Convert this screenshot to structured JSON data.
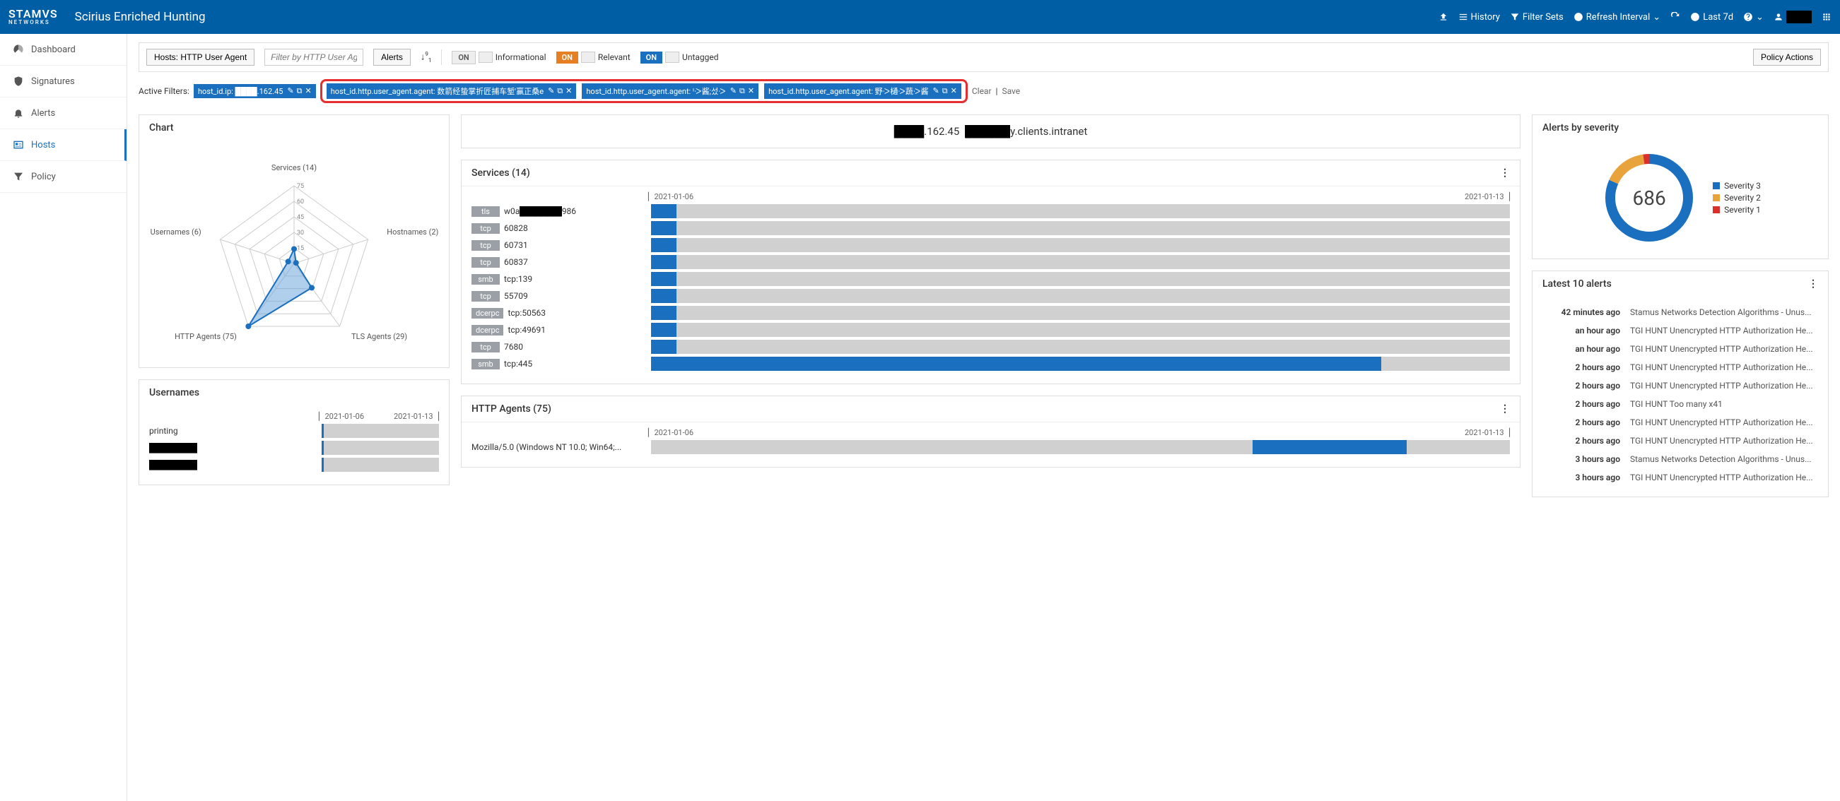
{
  "header": {
    "brand": "STAMVS",
    "brand_sub": "NETWORKS",
    "app_title": "Scirius Enriched Hunting",
    "links": {
      "history": "History",
      "filter_sets": "Filter Sets",
      "refresh": "Refresh Interval",
      "time_range": "Last 7d"
    }
  },
  "sidebar": {
    "items": [
      {
        "label": "Dashboard",
        "icon": "dashboard"
      },
      {
        "label": "Signatures",
        "icon": "shield"
      },
      {
        "label": "Alerts",
        "icon": "bell"
      },
      {
        "label": "Hosts",
        "icon": "id-card",
        "active": true
      },
      {
        "label": "Policy",
        "icon": "filter"
      }
    ]
  },
  "toolbar": {
    "hosts_button": "Hosts: HTTP User Agent",
    "filter_placeholder": "Filter by HTTP User Agent",
    "alerts_button": "Alerts",
    "toggles": {
      "informational": {
        "state": "ON",
        "label": "Informational",
        "on_label": "ON"
      },
      "relevant": {
        "state": "ON",
        "label": "Relevant",
        "on_label": "ON"
      },
      "untagged": {
        "state": "ON",
        "label": "Untagged",
        "on_label": "ON"
      }
    },
    "policy_actions": "Policy Actions"
  },
  "filters": {
    "label": "Active Filters:",
    "chips": [
      {
        "text": "host_id.ip: ████.162.45"
      },
      {
        "text": "host_id.http.user_agent.agent: 数箭经蛰掌折匠捕车堑'赢正桑e"
      },
      {
        "text": "host_id.http.user_agent.agent: ᑊᑀ酱;섰ᑀ"
      },
      {
        "text": "host_id.http.user_agent.agent: 野ᑀ樋ᑀ蔬ᑀ酱"
      }
    ],
    "clear": "Clear",
    "save": "Save"
  },
  "chart_panel": {
    "title": "Chart",
    "radar": {
      "axes": [
        {
          "label": "Services (14)",
          "value": 14
        },
        {
          "label": "Hostnames (2)",
          "value": 2
        },
        {
          "label": "TLS Agents (29)",
          "value": 29
        },
        {
          "label": "HTTP Agents (75)",
          "value": 75
        },
        {
          "label": "Usernames (6)",
          "value": 6
        }
      ],
      "ticks": [
        15,
        30,
        45,
        60,
        75
      ],
      "max": 75,
      "fill_color": "#6fa8dc",
      "fill_opacity": 0.55,
      "line_color": "#1a6fbf",
      "point_color": "#1a6fbf",
      "grid_color": "#cccccc",
      "label_color": "#555555",
      "tick_color": "#888888",
      "label_fontsize": 11,
      "tick_fontsize": 9
    }
  },
  "usernames_panel": {
    "title": "Usernames",
    "date_start": "2021-01-06",
    "date_end": "2021-01-13",
    "bar_bg": "#d0d0d0",
    "bar_fill": "#1a6fbf",
    "rows": [
      {
        "name": "printing",
        "fill": 0.02
      },
      {
        "name": "████████",
        "fill": 0.02
      },
      {
        "name": "████████",
        "fill": 0.02
      }
    ]
  },
  "host_header": {
    "ip_redacted_prefix": "████",
    "ip_suffix": ".162.45",
    "hostname_redacted_prefix": "██████",
    "hostname_suffix": "y.clients.intranet"
  },
  "services_panel": {
    "title": "Services (14)",
    "date_start": "2021-01-06",
    "date_end": "2021-01-13",
    "bar_bg": "#d0d0d0",
    "bar_fill": "#1a6fbf",
    "rows": [
      {
        "proto": "tls",
        "text": "w0a████████986",
        "fill": 0.03,
        "redacted": true
      },
      {
        "proto": "tcp",
        "text": "60828",
        "fill": 0.03
      },
      {
        "proto": "tcp",
        "text": "60731",
        "fill": 0.03
      },
      {
        "proto": "tcp",
        "text": "60837",
        "fill": 0.03
      },
      {
        "proto": "smb",
        "text": "tcp:139",
        "fill": 0.03
      },
      {
        "proto": "tcp",
        "text": "55709",
        "fill": 0.03
      },
      {
        "proto": "dcerpc",
        "text": "tcp:50563",
        "fill": 0.03
      },
      {
        "proto": "dcerpc",
        "text": "tcp:49691",
        "fill": 0.03
      },
      {
        "proto": "tcp",
        "text": "7680",
        "fill": 0.03
      },
      {
        "proto": "smb",
        "text": "tcp:445",
        "fill": 0.85
      }
    ]
  },
  "http_agents_panel": {
    "title": "HTTP Agents (75)",
    "date_start": "2021-01-06",
    "date_end": "2021-01-13",
    "bar_bg": "#d0d0d0",
    "bar_fill": "#1a6fbf",
    "rows": [
      {
        "text": "Mozilla/5.0 (Windows NT 10.0; Win64;...",
        "fill": 0.18,
        "fill_offset": 0.7
      }
    ]
  },
  "severity_panel": {
    "title": "Alerts by severity",
    "total": "686",
    "donut": {
      "segments": [
        {
          "label": "Severity 3",
          "color": "#1a6fbf",
          "value": 560
        },
        {
          "label": "Severity 2",
          "color": "#e8a33d",
          "value": 110
        },
        {
          "label": "Severity 1",
          "color": "#d9302c",
          "value": 16
        }
      ],
      "total_value": 686,
      "stroke_width": 14,
      "radius": 55
    }
  },
  "latest_alerts": {
    "title": "Latest 10 alerts",
    "rows": [
      {
        "time": "42 minutes ago",
        "msg": "Stamus Networks Detection Algorithms - Unus..."
      },
      {
        "time": "an hour ago",
        "msg": "TGI HUNT Unencrypted HTTP Authorization He..."
      },
      {
        "time": "an hour ago",
        "msg": "TGI HUNT Unencrypted HTTP Authorization He..."
      },
      {
        "time": "2 hours ago",
        "msg": "TGI HUNT Unencrypted HTTP Authorization He..."
      },
      {
        "time": "2 hours ago",
        "msg": "TGI HUNT Unencrypted HTTP Authorization He..."
      },
      {
        "time": "2 hours ago",
        "msg": "TGI HUNT Too many x41"
      },
      {
        "time": "2 hours ago",
        "msg": "TGI HUNT Unencrypted HTTP Authorization He..."
      },
      {
        "time": "2 hours ago",
        "msg": "TGI HUNT Unencrypted HTTP Authorization He..."
      },
      {
        "time": "3 hours ago",
        "msg": "Stamus Networks Detection Algorithms - Unus..."
      },
      {
        "time": "3 hours ago",
        "msg": "TGI HUNT Unencrypted HTTP Authorization He..."
      }
    ]
  }
}
